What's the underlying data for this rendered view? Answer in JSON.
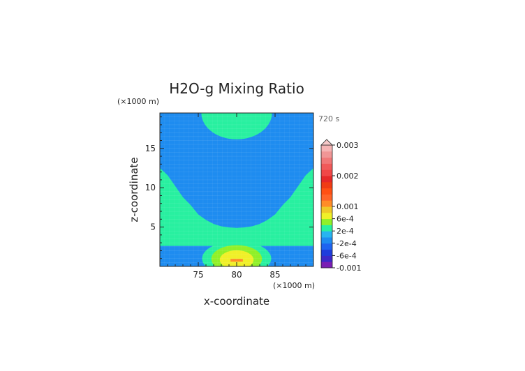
{
  "chart_data": {
    "type": "contour",
    "title": "H2O-g Mixing Ratio",
    "time_label": "720 s",
    "xlabel": "x-coordinate",
    "ylabel": "z-coordinate",
    "x_unit": "(×1000 m)",
    "y_unit": "(×1000 m)",
    "xlim": [
      70,
      90
    ],
    "ylim": [
      0,
      19.5
    ],
    "x_ticks": [
      75,
      80,
      85
    ],
    "y_ticks": [
      5,
      10,
      15
    ],
    "levels": [
      -0.001,
      -0.0008,
      -0.0006,
      -0.0004,
      -0.0002,
      0,
      0.0002,
      0.0004,
      0.0006,
      0.0008,
      0.001,
      0.0012,
      0.0014,
      0.0016,
      0.0018,
      0.002,
      0.0022,
      0.0024,
      0.0026,
      0.0028,
      0.003
    ],
    "colorbar_labels": [
      "0.003",
      "0.002",
      "0.001",
      "6e-4",
      "2e-4",
      "-2e-4",
      "-6e-4",
      "-0.001"
    ],
    "field_regions": [
      {
        "range": [
          -0.0002,
          0
        ],
        "color": "#1e8cf0",
        "description": "background"
      },
      {
        "range": [
          0,
          0.0002
        ],
        "color": "#28f0a0",
        "description": "top cap centered x=80, z=16.2–19.5; sides x<74 & x>86 above z≈2.5; band z≈2.5–4.5 across"
      },
      {
        "range": [
          0.0002,
          0.0004
        ],
        "color": "#90f028",
        "description": "ring around peak at x=80, z≈1"
      },
      {
        "range": [
          0.0004,
          0.0006
        ],
        "color": "#f0f028",
        "description": "inner core at x=80, z≈0.9"
      },
      {
        "range": [
          0.001,
          0.0012
        ],
        "color": "#ff8c28",
        "description": "small maximum at x=80, z≈0.8"
      }
    ],
    "grid": false,
    "colorbar_position": "right"
  },
  "colors": {
    "background_field": "#1e8cf0",
    "light_green": "#28f0a0",
    "yellow_green": "#90f028",
    "yellow": "#f0f028",
    "orange": "#ff8c28"
  }
}
